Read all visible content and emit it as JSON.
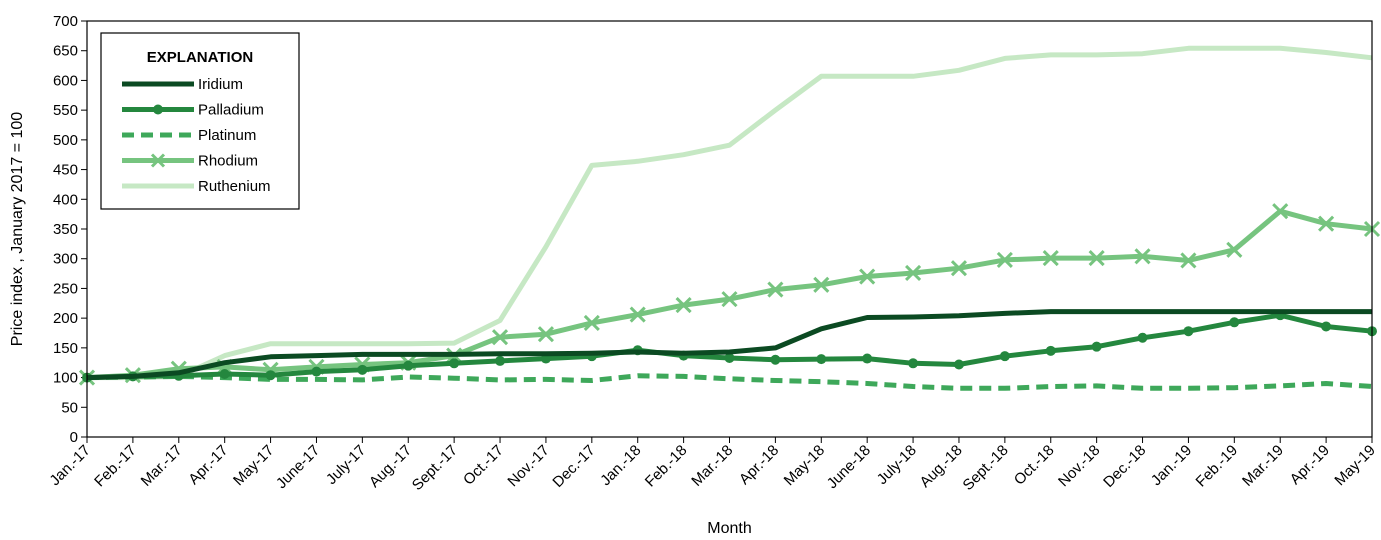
{
  "chart_data": {
    "type": "line",
    "title": "",
    "xlabel": "Month",
    "ylabel": "Price index , January 2017 = 100",
    "ylim": [
      0,
      700
    ],
    "ytick_step": 50,
    "legend_title": "EXPLANATION",
    "legend_position": "top-left",
    "grid": false,
    "categories": [
      "Jan.-17",
      "Feb.-17",
      "Mar.-17",
      "Apr.-17",
      "May-17",
      "June-17",
      "July-17",
      "Aug.-17",
      "Sept.-17",
      "Oct.-17",
      "Nov.-17",
      "Dec.-17",
      "Jan.-18",
      "Feb.-18",
      "Mar.-18",
      "Apr.-18",
      "May-18",
      "June-18",
      "July-18",
      "Aug.-18",
      "Sept.-18",
      "Oct.-18",
      "Nov.-18",
      "Dec.-18",
      "Jan.-19",
      "Feb.-19",
      "Mar.-19",
      "Apr.-19",
      "May-19"
    ],
    "series": [
      {
        "name": "Iridium",
        "color": "#0b4a22",
        "style": "solid",
        "marker": "none",
        "values": [
          100,
          102,
          108,
          125,
          135,
          137,
          139,
          139,
          139,
          140,
          140,
          141,
          143,
          141,
          143,
          150,
          182,
          201,
          202,
          204,
          208,
          211,
          211,
          211,
          211,
          211,
          211,
          211,
          211
        ]
      },
      {
        "name": "Palladium",
        "color": "#24873e",
        "style": "solid",
        "marker": "circle",
        "values": [
          100,
          102,
          103,
          106,
          104,
          110,
          113,
          120,
          124,
          128,
          132,
          136,
          146,
          137,
          133,
          130,
          131,
          132,
          124,
          122,
          136,
          145,
          152,
          167,
          178,
          193,
          205,
          186,
          178
        ]
      },
      {
        "name": "Platinum",
        "color": "#3ea85a",
        "style": "dashed",
        "marker": "none",
        "values": [
          100,
          101,
          102,
          100,
          97,
          97,
          96,
          101,
          99,
          96,
          97,
          95,
          103,
          102,
          98,
          95,
          93,
          90,
          85,
          82,
          82,
          85,
          86,
          82,
          82,
          83,
          86,
          90,
          85
        ]
      },
      {
        "name": "Rhodium",
        "color": "#76c47f",
        "style": "solid",
        "marker": "x",
        "values": [
          100,
          104,
          115,
          118,
          113,
          118,
          122,
          125,
          137,
          168,
          173,
          192,
          206,
          222,
          232,
          248,
          256,
          270,
          276,
          284,
          298,
          301,
          301,
          304,
          297,
          315,
          380,
          359,
          350
        ]
      },
      {
        "name": "Ruthenium",
        "color": "#c6e8c4",
        "style": "solid",
        "marker": "none",
        "values": [
          100,
          100,
          102,
          137,
          157,
          157,
          157,
          157,
          158,
          196,
          320,
          457,
          464,
          475,
          491,
          550,
          607,
          607,
          607,
          617,
          637,
          643,
          643,
          645,
          654,
          654,
          654,
          647,
          638
        ]
      }
    ]
  }
}
